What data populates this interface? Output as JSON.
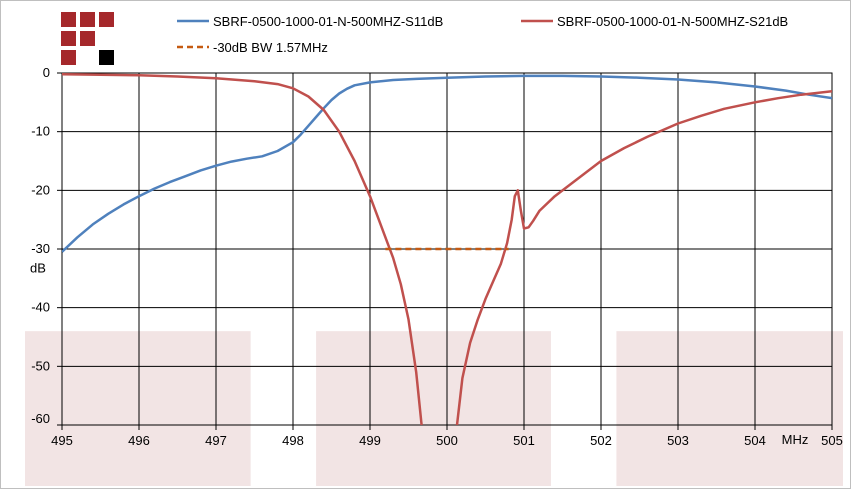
{
  "chart_data": {
    "type": "line",
    "title": "",
    "xlabel": "MHz",
    "ylabel": "dB",
    "xlim": [
      495,
      505
    ],
    "ylim": [
      -60,
      0
    ],
    "x_ticks": [
      495,
      496,
      497,
      498,
      499,
      500,
      501,
      502,
      503,
      504,
      505
    ],
    "y_ticks": [
      0,
      -10,
      -20,
      -30,
      -40,
      -50,
      -60
    ],
    "grid": true,
    "legend_position": "top",
    "shaded_regions": [
      {
        "x": [
          494.5,
          497.45
        ],
        "y": [
          -60,
          -44
        ]
      },
      {
        "x": [
          498.3,
          501.35
        ],
        "y": [
          -60,
          -44
        ]
      },
      {
        "x": [
          502.2,
          505.2
        ],
        "y": [
          -60,
          -44
        ]
      }
    ],
    "series": [
      {
        "name": "SBRF-0500-1000-01-N-500MHZ-S11dB",
        "color": "#4f81bd",
        "style": "solid",
        "points": [
          [
            495.0,
            -30.5
          ],
          [
            495.2,
            -28.0
          ],
          [
            495.4,
            -25.8
          ],
          [
            495.6,
            -24.0
          ],
          [
            495.8,
            -22.4
          ],
          [
            496.0,
            -21.0
          ],
          [
            496.2,
            -19.7
          ],
          [
            496.4,
            -18.6
          ],
          [
            496.6,
            -17.6
          ],
          [
            496.8,
            -16.6
          ],
          [
            497.0,
            -15.8
          ],
          [
            497.2,
            -15.1
          ],
          [
            497.4,
            -14.6
          ],
          [
            497.6,
            -14.2
          ],
          [
            497.8,
            -13.3
          ],
          [
            498.0,
            -11.8
          ],
          [
            498.1,
            -10.5
          ],
          [
            498.2,
            -9.0
          ],
          [
            498.3,
            -7.5
          ],
          [
            498.4,
            -6.0
          ],
          [
            498.5,
            -4.6
          ],
          [
            498.6,
            -3.5
          ],
          [
            498.7,
            -2.7
          ],
          [
            498.8,
            -2.1
          ],
          [
            499.0,
            -1.6
          ],
          [
            499.3,
            -1.2
          ],
          [
            499.6,
            -1.0
          ],
          [
            500.0,
            -0.8
          ],
          [
            500.5,
            -0.6
          ],
          [
            501.0,
            -0.5
          ],
          [
            501.5,
            -0.5
          ],
          [
            502.0,
            -0.6
          ],
          [
            502.5,
            -0.8
          ],
          [
            503.0,
            -1.1
          ],
          [
            503.5,
            -1.6
          ],
          [
            504.0,
            -2.3
          ],
          [
            504.4,
            -3.0
          ],
          [
            504.7,
            -3.7
          ],
          [
            505.0,
            -4.3
          ]
        ]
      },
      {
        "name": "SBRF-0500-1000-01-N-500MHZ-S21dB",
        "color": "#c0504d",
        "style": "solid",
        "segments": [
          [
            [
              495.0,
              -0.2
            ],
            [
              495.5,
              -0.3
            ],
            [
              496.0,
              -0.4
            ],
            [
              496.5,
              -0.6
            ],
            [
              497.0,
              -0.9
            ],
            [
              497.5,
              -1.4
            ],
            [
              497.8,
              -1.9
            ],
            [
              498.0,
              -2.6
            ],
            [
              498.2,
              -4.0
            ],
            [
              498.4,
              -6.3
            ],
            [
              498.6,
              -10.0
            ],
            [
              498.8,
              -15.0
            ],
            [
              499.0,
              -21.0
            ],
            [
              499.2,
              -28.0
            ],
            [
              499.3,
              -31.5
            ],
            [
              499.4,
              -36.0
            ],
            [
              499.5,
              -42.0
            ],
            [
              499.6,
              -51.0
            ],
            [
              499.67,
              -60.0
            ]
          ],
          [
            [
              500.13,
              -60.0
            ],
            [
              500.2,
              -52.0
            ],
            [
              500.3,
              -46.0
            ],
            [
              500.4,
              -42.0
            ],
            [
              500.5,
              -38.5
            ],
            [
              500.6,
              -35.5
            ],
            [
              500.7,
              -32.5
            ],
            [
              500.78,
              -29.0
            ],
            [
              500.84,
              -25.0
            ],
            [
              500.88,
              -21.0
            ],
            [
              500.92,
              -20.0
            ],
            [
              500.96,
              -23.5
            ],
            [
              501.0,
              -26.5
            ],
            [
              501.06,
              -26.3
            ],
            [
              501.12,
              -25.2
            ],
            [
              501.2,
              -23.5
            ],
            [
              501.4,
              -21.0
            ],
            [
              501.6,
              -19.0
            ],
            [
              501.8,
              -17.0
            ],
            [
              502.0,
              -15.0
            ],
            [
              502.3,
              -12.8
            ],
            [
              502.6,
              -10.9
            ],
            [
              503.0,
              -8.6
            ],
            [
              503.3,
              -7.3
            ],
            [
              503.6,
              -6.1
            ],
            [
              504.0,
              -5.0
            ],
            [
              504.3,
              -4.3
            ],
            [
              504.6,
              -3.7
            ],
            [
              505.0,
              -3.1
            ]
          ]
        ]
      },
      {
        "name": "-30dB BW 1.57MHz",
        "color": "#c55a11",
        "style": "dashed",
        "points": [
          [
            499.2,
            -30.0
          ],
          [
            500.8,
            -30.0
          ]
        ]
      }
    ]
  },
  "logo": {
    "colors": [
      "#a5282b",
      "#000000"
    ]
  }
}
